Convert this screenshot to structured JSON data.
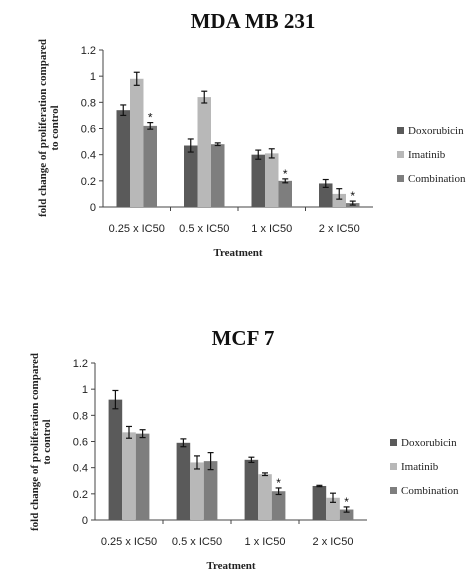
{
  "chart_data": [
    {
      "type": "bar",
      "title": "MDA MB 231",
      "xlabel": "Treatment",
      "ylabel": "fold change of proliferation compared to control",
      "categories": [
        "0.25 x IC50",
        "0.5 x IC50",
        "1 x IC50",
        "2 x IC50"
      ],
      "ylim": [
        0,
        1.2
      ],
      "yticks": [
        "0",
        "0.2",
        "0.4",
        "0.6",
        "0.8",
        "1",
        "1.2"
      ],
      "legend_position": "right",
      "series": [
        {
          "name": "Doxorubicin",
          "color": "#5a5a5a",
          "values": [
            0.74,
            0.47,
            0.4,
            0.18
          ],
          "errors": [
            0.04,
            0.05,
            0.035,
            0.03
          ]
        },
        {
          "name": "Imatinib",
          "color": "#b8b8b8",
          "values": [
            0.98,
            0.84,
            0.41,
            0.1
          ],
          "errors": [
            0.05,
            0.045,
            0.035,
            0.04
          ]
        },
        {
          "name": "Combination",
          "color": "#7e7e7e",
          "values": [
            0.62,
            0.48,
            0.2,
            0.03
          ],
          "errors": [
            0.025,
            0.01,
            0.015,
            0.015
          ]
        }
      ],
      "annotations": [
        {
          "category": "0.25 x IC50",
          "series": "Combination",
          "text": "*"
        },
        {
          "category": "1 x IC50",
          "series": "Combination",
          "text": "*"
        },
        {
          "category": "2 x IC50",
          "series": "Combination",
          "text": "*"
        }
      ]
    },
    {
      "type": "bar",
      "title": "MCF 7",
      "xlabel": "Treatment",
      "ylabel": "fold change of proliferation compared to control",
      "categories": [
        "0.25 x IC50",
        "0.5 x IC50",
        "1 x IC50",
        "2 x IC50"
      ],
      "ylim": [
        0,
        1.2
      ],
      "yticks": [
        "0",
        "0.2",
        "0.4",
        "0.6",
        "0.8",
        "1",
        "1.2"
      ],
      "legend_position": "right",
      "series": [
        {
          "name": "Doxorubicin",
          "color": "#5a5a5a",
          "values": [
            0.92,
            0.59,
            0.46,
            0.26
          ],
          "errors": [
            0.07,
            0.03,
            0.02,
            0.005
          ]
        },
        {
          "name": "Imatinib",
          "color": "#b8b8b8",
          "values": [
            0.67,
            0.44,
            0.35,
            0.17
          ],
          "errors": [
            0.045,
            0.05,
            0.01,
            0.035
          ]
        },
        {
          "name": "Combination",
          "color": "#7e7e7e",
          "values": [
            0.66,
            0.45,
            0.22,
            0.08
          ],
          "errors": [
            0.03,
            0.065,
            0.025,
            0.02
          ]
        }
      ],
      "annotations": [
        {
          "category": "1 x IC50",
          "series": "Combination",
          "text": "*"
        },
        {
          "category": "2 x IC50",
          "series": "Combination",
          "text": "*"
        }
      ]
    }
  ]
}
